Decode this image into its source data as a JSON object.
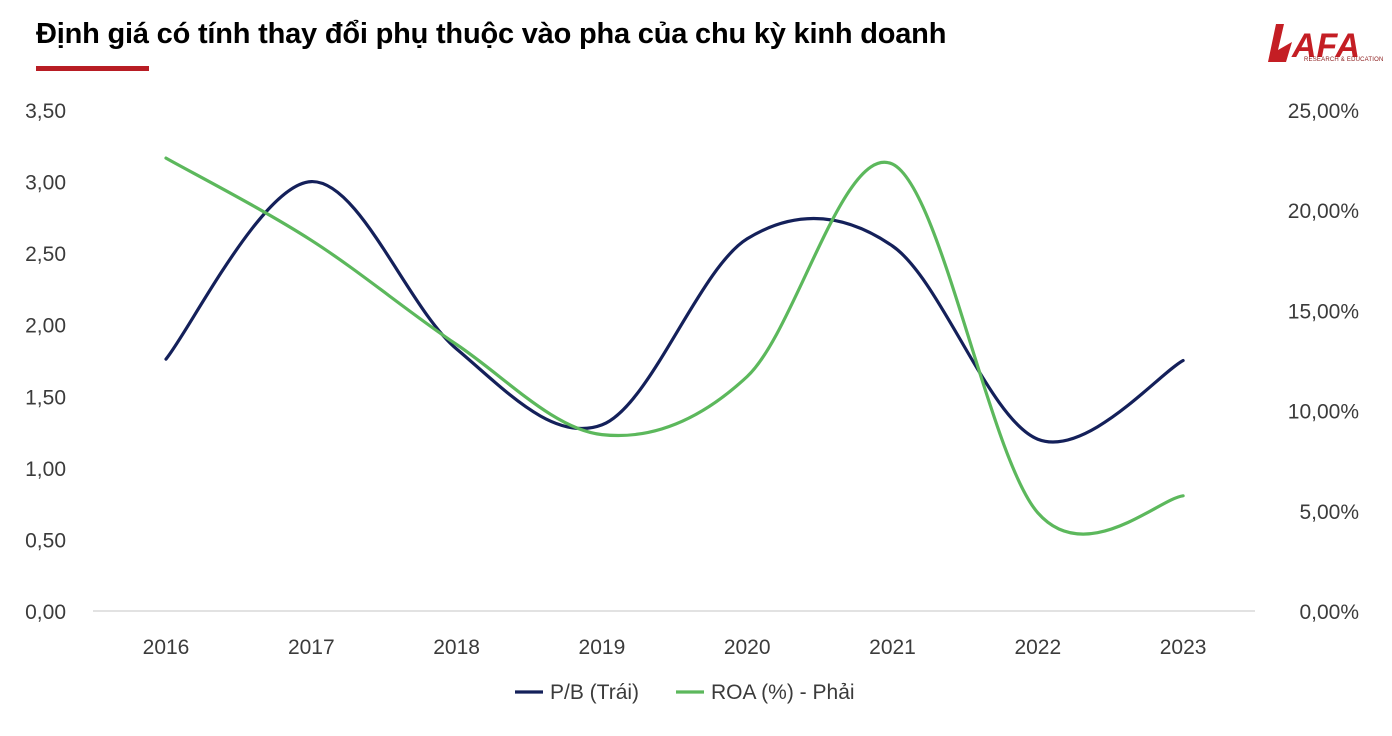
{
  "header": {
    "title": "Định giá có tính thay đổi phụ thuộc vào pha của chu kỳ kinh doanh",
    "accent_color": "#b81d24"
  },
  "logo": {
    "text": "AFA",
    "subtext": "RESEARCH & EDUCATION",
    "color": "#c41e24"
  },
  "chart_data": {
    "type": "line",
    "categories": [
      "2016",
      "2017",
      "2018",
      "2019",
      "2020",
      "2021",
      "2022",
      "2023"
    ],
    "series": [
      {
        "name": "P/B (Trái)",
        "axis": "left",
        "color": "#14205a",
        "values": [
          1.76,
          3.0,
          1.83,
          1.3,
          2.6,
          2.55,
          1.2,
          1.75
        ]
      },
      {
        "name": "ROA (%) - Phải",
        "axis": "right",
        "color": "#5cb85c",
        "values": [
          0.226,
          0.185,
          0.133,
          0.088,
          0.117,
          0.223,
          0.049,
          0.0575
        ]
      }
    ],
    "y_left": {
      "ylim": [
        0,
        3.5
      ],
      "ticks": [
        "0,00",
        "0,50",
        "1,00",
        "1,50",
        "2,00",
        "2,50",
        "3,00",
        "3,50"
      ]
    },
    "y_right": {
      "ylim": [
        0,
        0.25
      ],
      "ticks": [
        "0,00%",
        "5,00%",
        "10,00%",
        "15,00%",
        "20,00%",
        "25,00%"
      ]
    },
    "grid": false,
    "legend": "bottom"
  }
}
